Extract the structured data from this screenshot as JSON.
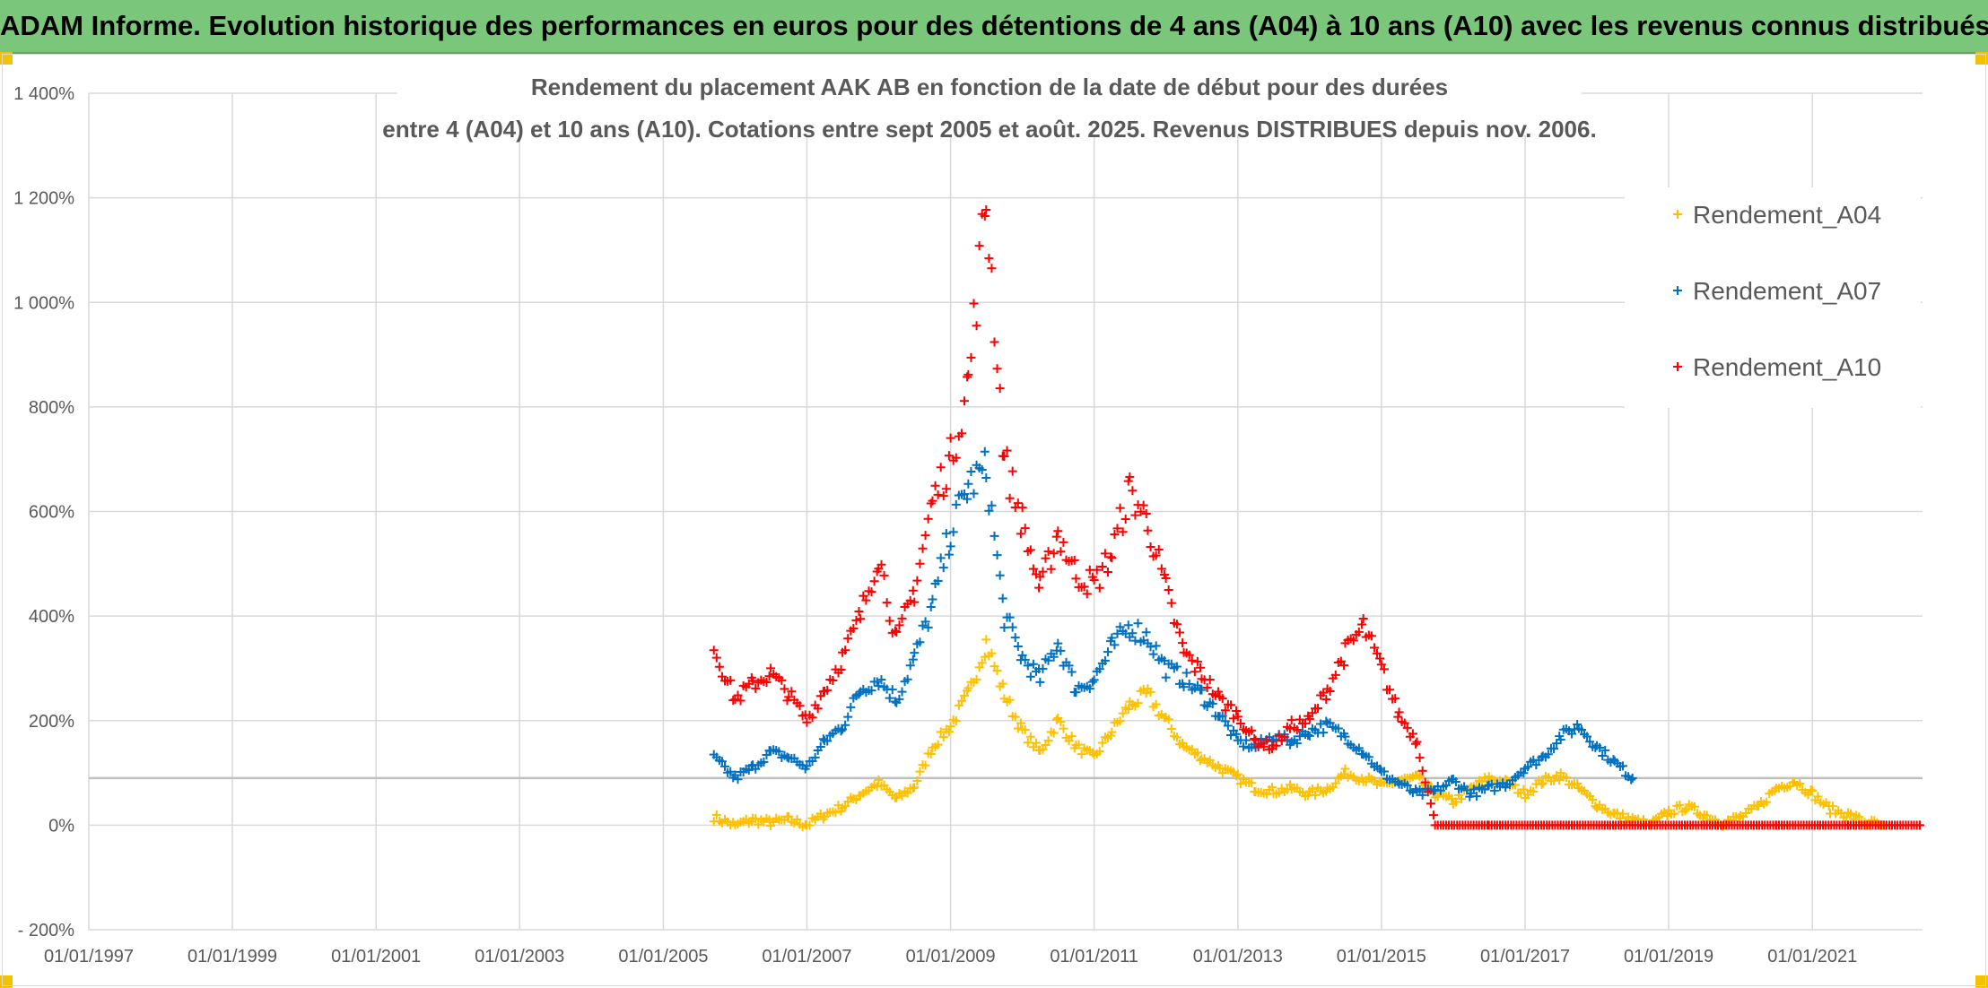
{
  "header": {
    "title": "ADAM Informe. Evolution historique des performances en euros pour des détentions de 4 ans (A04) à 10 ans (A10) avec les revenus connus distribués"
  },
  "chart_data": {
    "type": "scatter",
    "title_line1": "Rendement du placement AAK AB en fonction de la date de début pour des durées",
    "title_line2": "entre 4 (A04) et 10 ans (A10). Cotations entre sept 2005 et août. 2025. Revenus DISTRIBUES depuis nov. 2006.",
    "x_axis": {
      "type": "date",
      "min": "01/01/1997",
      "max": "15/07/2022",
      "tick_labels": [
        "01/01/1997",
        "01/01/1999",
        "01/01/2001",
        "01/01/2003",
        "01/01/2005",
        "01/01/2007",
        "01/01/2009",
        "01/01/2011",
        "01/01/2013",
        "01/01/2015",
        "01/01/2017",
        "01/01/2019",
        "01/01/2021"
      ]
    },
    "y_axis": {
      "unit": "%",
      "min": -200,
      "max": 1400,
      "tick_labels": [
        "- 200%",
        "0%",
        "200%",
        "400%",
        "600%",
        "800%",
        "1 000%",
        "1 200%",
        "1 400%"
      ],
      "tick_values": [
        -200,
        0,
        200,
        400,
        600,
        800,
        1000,
        1200,
        1400
      ]
    },
    "grid": true,
    "reference_line_y": 90,
    "legend_position": "top-right",
    "series": [
      {
        "name": "Rendement_A04",
        "color": "#ffc000",
        "points": [
          [
            "2005-09-15",
            15
          ],
          [
            "2006-01-01",
            0
          ],
          [
            "2006-04-01",
            10
          ],
          [
            "2006-07-01",
            5
          ],
          [
            "2006-10-01",
            10
          ],
          [
            "2007-01-01",
            0
          ],
          [
            "2007-04-01",
            20
          ],
          [
            "2007-07-01",
            35
          ],
          [
            "2007-10-01",
            60
          ],
          [
            "2008-01-01",
            80
          ],
          [
            "2008-04-01",
            50
          ],
          [
            "2008-07-01",
            75
          ],
          [
            "2008-10-01",
            150
          ],
          [
            "2009-01-01",
            190
          ],
          [
            "2009-04-01",
            250
          ],
          [
            "2009-07-01",
            350
          ],
          [
            "2009-10-01",
            250
          ],
          [
            "2010-01-01",
            180
          ],
          [
            "2010-04-01",
            140
          ],
          [
            "2010-07-01",
            200
          ],
          [
            "2010-10-01",
            150
          ],
          [
            "2011-01-01",
            130
          ],
          [
            "2011-04-01",
            180
          ],
          [
            "2011-07-01",
            230
          ],
          [
            "2011-10-01",
            250
          ],
          [
            "2012-01-01",
            200
          ],
          [
            "2012-04-01",
            150
          ],
          [
            "2012-07-01",
            130
          ],
          [
            "2012-10-01",
            110
          ],
          [
            "2013-01-01",
            90
          ],
          [
            "2013-04-01",
            70
          ],
          [
            "2013-07-01",
            65
          ],
          [
            "2013-10-01",
            70
          ],
          [
            "2014-01-01",
            60
          ],
          [
            "2014-04-01",
            70
          ],
          [
            "2014-07-01",
            100
          ],
          [
            "2014-10-01",
            90
          ],
          [
            "2015-01-01",
            75
          ],
          [
            "2015-04-01",
            85
          ],
          [
            "2015-07-01",
            90
          ],
          [
            "2015-10-01",
            60
          ],
          [
            "2016-01-01",
            45
          ],
          [
            "2016-04-01",
            70
          ],
          [
            "2016-07-01",
            90
          ],
          [
            "2016-10-01",
            80
          ],
          [
            "2017-01-01",
            60
          ],
          [
            "2017-04-01",
            85
          ],
          [
            "2017-07-01",
            95
          ],
          [
            "2017-10-01",
            70
          ],
          [
            "2018-01-01",
            40
          ],
          [
            "2018-04-01",
            20
          ],
          [
            "2018-07-01",
            10
          ],
          [
            "2018-10-01",
            0
          ],
          [
            "2019-01-01",
            25
          ],
          [
            "2019-04-01",
            35
          ],
          [
            "2019-07-01",
            20
          ],
          [
            "2019-10-01",
            5
          ],
          [
            "2020-01-01",
            15
          ],
          [
            "2020-04-01",
            35
          ],
          [
            "2020-07-01",
            70
          ],
          [
            "2020-10-01",
            85
          ],
          [
            "2021-01-01",
            60
          ],
          [
            "2021-04-01",
            30
          ],
          [
            "2021-07-01",
            20
          ],
          [
            "2021-10-01",
            5
          ],
          [
            "2022-01-01",
            0
          ]
        ]
      },
      {
        "name": "Rendement_A07",
        "color": "#0070c0",
        "points": [
          [
            "2005-09-15",
            130
          ],
          [
            "2006-01-01",
            90
          ],
          [
            "2006-04-01",
            110
          ],
          [
            "2006-07-01",
            140
          ],
          [
            "2006-10-01",
            130
          ],
          [
            "2007-01-01",
            110
          ],
          [
            "2007-04-01",
            160
          ],
          [
            "2007-07-01",
            190
          ],
          [
            "2007-10-01",
            260
          ],
          [
            "2008-01-01",
            280
          ],
          [
            "2008-04-01",
            240
          ],
          [
            "2008-07-01",
            320
          ],
          [
            "2008-10-01",
            420
          ],
          [
            "2009-01-01",
            560
          ],
          [
            "2009-04-01",
            650
          ],
          [
            "2009-07-01",
            680
          ],
          [
            "2009-10-01",
            400
          ],
          [
            "2010-01-01",
            320
          ],
          [
            "2010-04-01",
            280
          ],
          [
            "2010-07-01",
            350
          ],
          [
            "2010-10-01",
            260
          ],
          [
            "2011-01-01",
            280
          ],
          [
            "2011-04-01",
            340
          ],
          [
            "2011-07-01",
            380
          ],
          [
            "2011-10-01",
            360
          ],
          [
            "2012-01-01",
            300
          ],
          [
            "2012-04-01",
            280
          ],
          [
            "2012-07-01",
            250
          ],
          [
            "2012-10-01",
            210
          ],
          [
            "2013-01-01",
            160
          ],
          [
            "2013-04-01",
            150
          ],
          [
            "2013-07-01",
            170
          ],
          [
            "2013-10-01",
            160
          ],
          [
            "2014-01-01",
            180
          ],
          [
            "2014-04-01",
            190
          ],
          [
            "2014-07-01",
            170
          ],
          [
            "2014-10-01",
            140
          ],
          [
            "2015-01-01",
            100
          ],
          [
            "2015-04-01",
            80
          ],
          [
            "2015-07-01",
            60
          ],
          [
            "2015-10-01",
            65
          ],
          [
            "2016-01-01",
            85
          ],
          [
            "2016-04-01",
            60
          ],
          [
            "2016-07-01",
            70
          ],
          [
            "2016-10-01",
            80
          ],
          [
            "2017-01-01",
            110
          ],
          [
            "2017-04-01",
            130
          ],
          [
            "2017-07-01",
            170
          ],
          [
            "2017-10-01",
            190
          ],
          [
            "2018-01-01",
            150
          ],
          [
            "2018-04-01",
            120
          ],
          [
            "2018-07-01",
            90
          ]
        ]
      },
      {
        "name": "Rendement_A10",
        "color": "#ff0000",
        "points": [
          [
            "2005-09-15",
            340
          ],
          [
            "2006-01-01",
            240
          ],
          [
            "2006-04-01",
            270
          ],
          [
            "2006-07-01",
            290
          ],
          [
            "2006-10-01",
            250
          ],
          [
            "2007-01-01",
            200
          ],
          [
            "2007-04-01",
            260
          ],
          [
            "2007-07-01",
            320
          ],
          [
            "2007-10-01",
            400
          ],
          [
            "2008-01-01",
            520
          ],
          [
            "2008-04-01",
            350
          ],
          [
            "2008-07-01",
            450
          ],
          [
            "2008-10-01",
            620
          ],
          [
            "2009-01-01",
            700
          ],
          [
            "2009-04-01",
            850
          ],
          [
            "2009-07-01",
            1200
          ],
          [
            "2009-10-01",
            700
          ],
          [
            "2010-01-01",
            580
          ],
          [
            "2010-04-01",
            450
          ],
          [
            "2010-07-01",
            560
          ],
          [
            "2010-10-01",
            480
          ],
          [
            "2011-01-01",
            460
          ],
          [
            "2011-04-01",
            520
          ],
          [
            "2011-07-01",
            640
          ],
          [
            "2011-10-01",
            580
          ],
          [
            "2012-01-01",
            450
          ],
          [
            "2012-04-01",
            330
          ],
          [
            "2012-07-01",
            290
          ],
          [
            "2012-10-01",
            240
          ],
          [
            "2013-01-01",
            210
          ],
          [
            "2013-04-01",
            160
          ],
          [
            "2013-07-01",
            150
          ],
          [
            "2013-10-01",
            190
          ],
          [
            "2014-01-01",
            200
          ],
          [
            "2014-04-01",
            260
          ],
          [
            "2014-07-01",
            330
          ],
          [
            "2014-10-01",
            380
          ],
          [
            "2015-01-01",
            300
          ],
          [
            "2015-04-01",
            210
          ],
          [
            "2015-07-01",
            160
          ],
          [
            "2015-10-01",
            0
          ],
          [
            "2016-07-01",
            0
          ],
          [
            "2017-07-01",
            0
          ],
          [
            "2018-07-01",
            0
          ],
          [
            "2019-07-01",
            0
          ],
          [
            "2020-07-01",
            0
          ],
          [
            "2021-07-01",
            0
          ],
          [
            "2022-07-01",
            0
          ]
        ]
      }
    ]
  }
}
